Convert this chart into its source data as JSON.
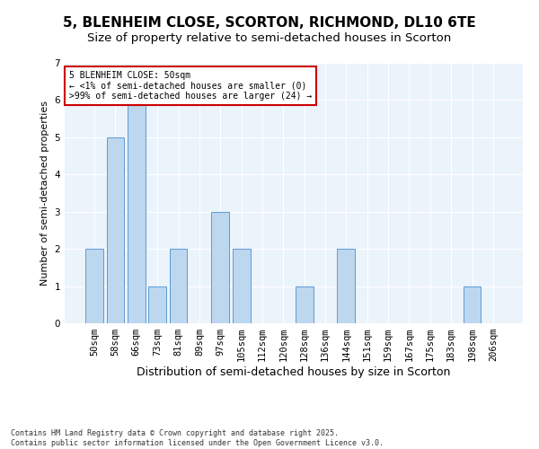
{
  "title": "5, BLENHEIM CLOSE, SCORTON, RICHMOND, DL10 6TE",
  "subtitle": "Size of property relative to semi-detached houses in Scorton",
  "xlabel": "Distribution of semi-detached houses by size in Scorton",
  "ylabel": "Number of semi-detached properties",
  "categories": [
    "50sqm",
    "58sqm",
    "66sqm",
    "73sqm",
    "81sqm",
    "89sqm",
    "97sqm",
    "105sqm",
    "112sqm",
    "120sqm",
    "128sqm",
    "136sqm",
    "144sqm",
    "151sqm",
    "159sqm",
    "167sqm",
    "175sqm",
    "183sqm",
    "198sqm",
    "206sqm"
  ],
  "values": [
    2,
    5,
    6,
    1,
    2,
    0,
    3,
    2,
    0,
    0,
    1,
    0,
    2,
    0,
    0,
    0,
    0,
    0,
    1,
    0
  ],
  "bar_color": "#BDD7EE",
  "bar_edge_color": "#5B9BD5",
  "highlight_label": "5 BLENHEIM CLOSE: 50sqm",
  "annotation_line1": "← <1% of semi-detached houses are smaller (0)",
  "annotation_line2": ">99% of semi-detached houses are larger (24) →",
  "ylim": [
    0,
    7
  ],
  "yticks": [
    0,
    1,
    2,
    3,
    4,
    5,
    6,
    7
  ],
  "background_color": "#EBF3FB",
  "footer": "Contains HM Land Registry data © Crown copyright and database right 2025.\nContains public sector information licensed under the Open Government Licence v3.0.",
  "title_fontsize": 11,
  "subtitle_fontsize": 9.5,
  "xlabel_fontsize": 9,
  "ylabel_fontsize": 8,
  "tick_fontsize": 7.5,
  "annotation_fontsize": 7,
  "footer_fontsize": 6,
  "bar_width": 0.85,
  "annotation_box_color": "#FFFFFF",
  "annotation_box_edge": "#CC0000",
  "grid_color": "#FFFFFF",
  "fig_bg": "#FFFFFF"
}
